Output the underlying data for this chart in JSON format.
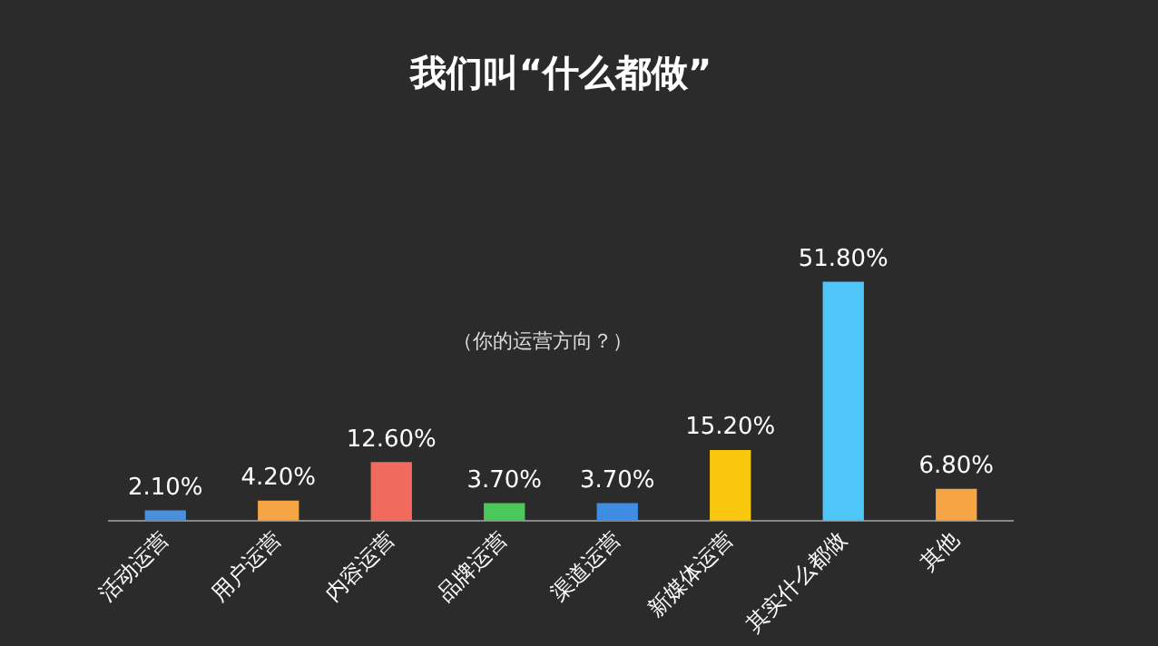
{
  "chart_data": {
    "type": "bar",
    "title": "我们叫“什么都做”",
    "annotations": [
      "（你的运营方向？）"
    ],
    "categories": [
      "活动运营",
      "用户运营",
      "内容运营",
      "品牌运营",
      "渠道运营",
      "新媒体运营",
      "其实什么都做",
      "其他"
    ],
    "values": [
      2.1,
      4.2,
      12.6,
      3.7,
      3.7,
      15.2,
      51.8,
      6.8
    ],
    "colors": [
      "#4a8fdc",
      "#f5a545",
      "#f26a5e",
      "#4cc85a",
      "#3f8de2",
      "#f9c80e",
      "#4fc6f8",
      "#f5a545"
    ],
    "value_labels": [
      "2.10%",
      "4.20%",
      "12.60%",
      "3.70%",
      "3.70%",
      "15.20%",
      "51.80%",
      "6.80%"
    ],
    "legend": false
  }
}
